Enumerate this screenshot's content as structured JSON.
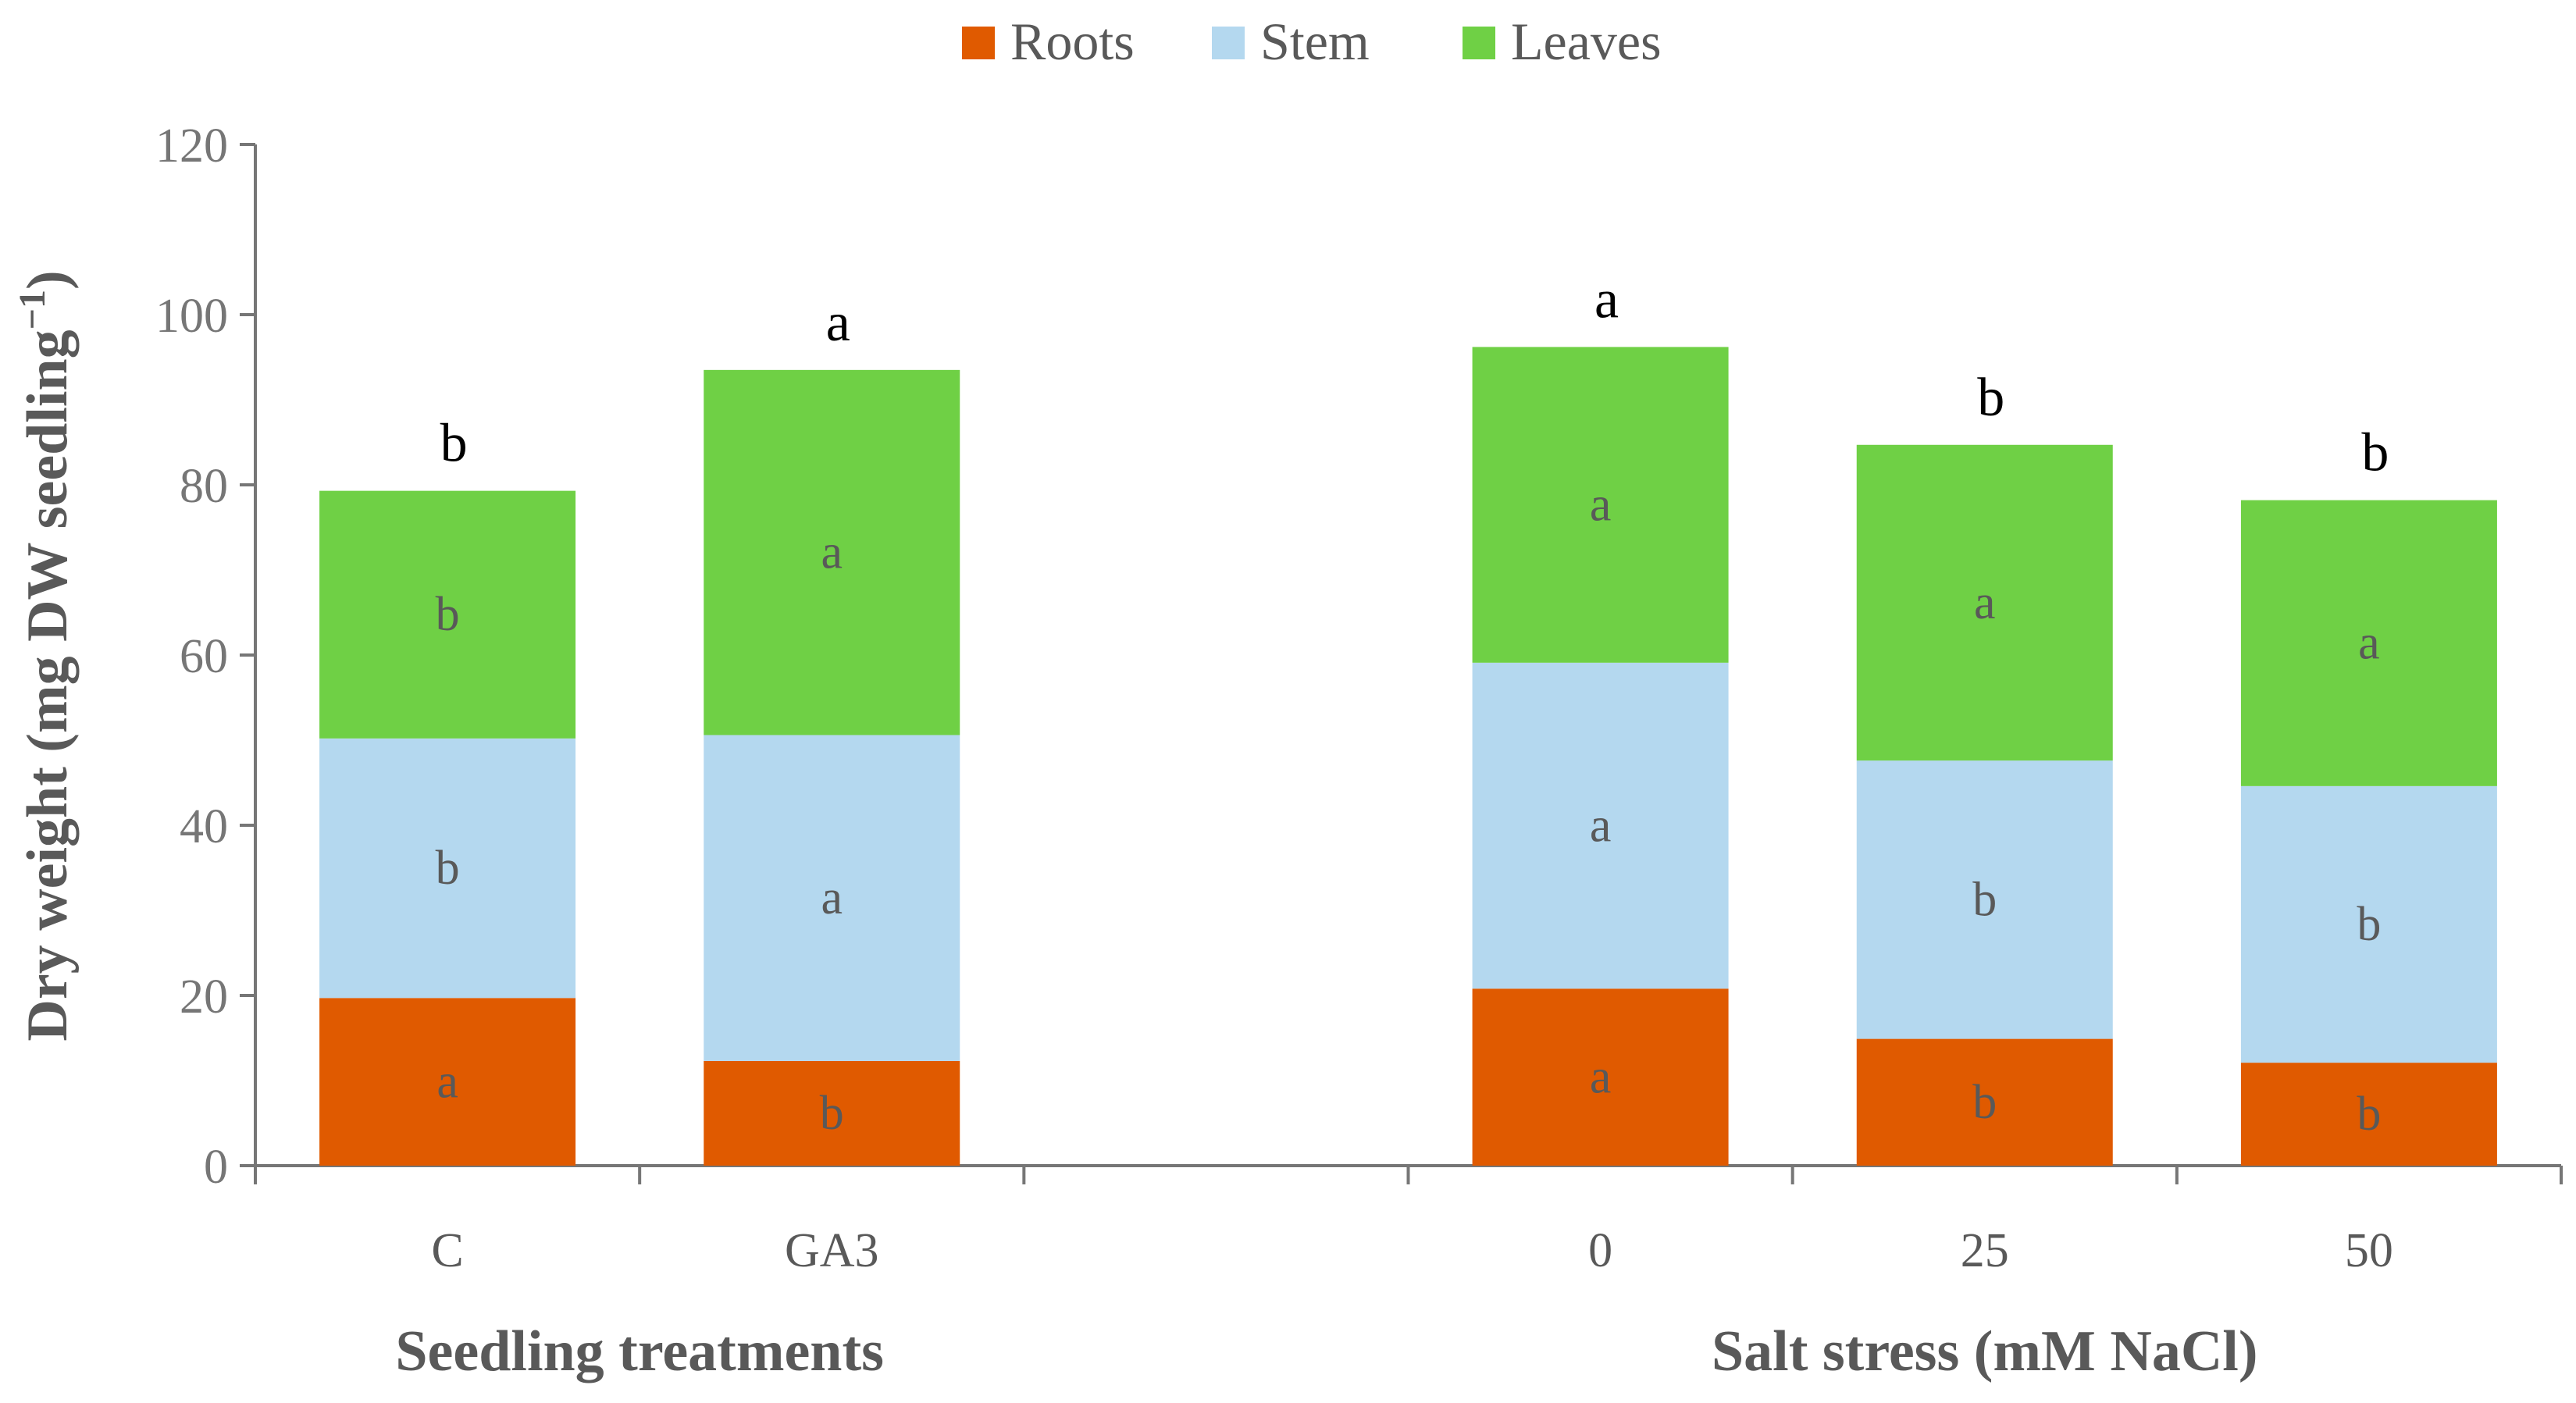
{
  "colors": {
    "roots": "#E05A00",
    "stem": "#B4D8EF",
    "leaves": "#6FD045",
    "axis": "#767676"
  },
  "chart_data": {
    "type": "bar",
    "stacked": true,
    "ylabel_main": "Dry weight (mg DW seedling",
    "ylabel_sup": "−1",
    "ylabel_close": ")",
    "ylim": [
      0,
      120
    ],
    "yticks": [
      "0",
      "20",
      "40",
      "60",
      "80",
      "100",
      "120"
    ],
    "legend": {
      "position": "top-center",
      "entries": [
        "Roots",
        "Stem",
        "Leaves"
      ]
    },
    "groups": [
      {
        "label": "Seedling treatments",
        "categories": [
          "C",
          "GA3"
        ]
      },
      {
        "label": "Salt stress (mM NaCl)",
        "categories": [
          "0",
          "25",
          "50"
        ]
      }
    ],
    "categories": [
      "C",
      "GA3",
      "",
      "0",
      "25",
      "50"
    ],
    "series": [
      {
        "name": "Roots",
        "values": [
          19.7,
          12.3,
          null,
          20.8,
          14.9,
          12.1
        ],
        "letters": [
          "a",
          "b",
          "",
          "a",
          "b",
          "b"
        ]
      },
      {
        "name": "Stem",
        "values": [
          30.5,
          38.3,
          null,
          38.3,
          32.7,
          32.5
        ],
        "letters": [
          "b",
          "a",
          "",
          "a",
          "b",
          "b"
        ]
      },
      {
        "name": "Leaves",
        "values": [
          29.1,
          42.9,
          null,
          37.1,
          37.1,
          33.6
        ],
        "letters": [
          "b",
          "a",
          "",
          "a",
          "a",
          "a"
        ]
      }
    ],
    "total_letters": [
      "b",
      "a",
      "",
      "a",
      "b",
      "b"
    ]
  }
}
